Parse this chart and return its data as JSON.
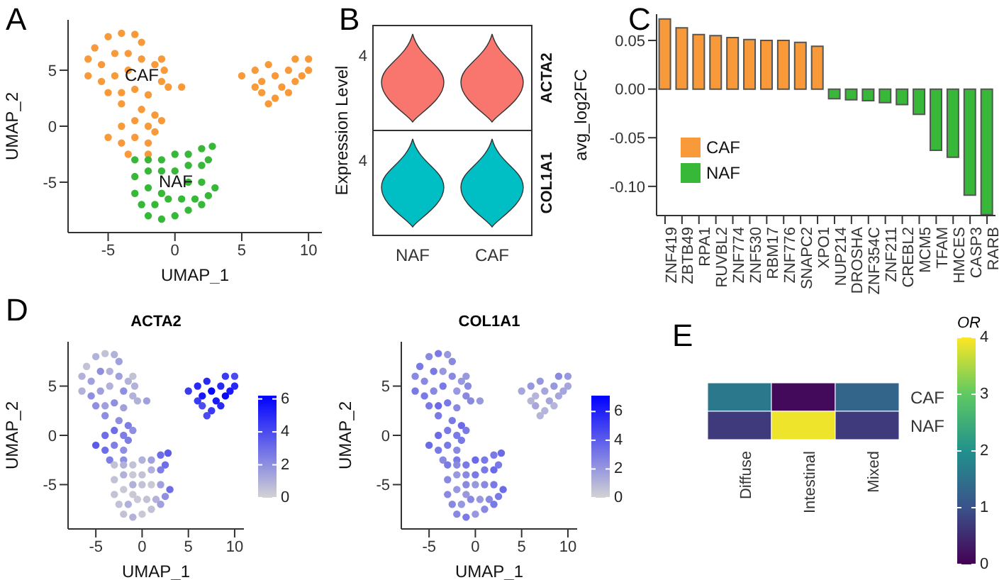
{
  "chart_data": [
    {
      "type": "scatter",
      "xlabel": "UMAP_1",
      "ylabel": "UMAP_2",
      "xlim": [
        -8,
        11
      ],
      "ylim": [
        -9.5,
        9.5
      ],
      "xticks": [
        -5,
        0,
        5,
        10
      ],
      "yticks": [
        -5,
        0,
        5
      ],
      "marker": "circle",
      "annotations": [
        "A",
        "CAF",
        "NAF"
      ],
      "series": [
        {
          "color": "#f99a3a",
          "x": [
            -6.5,
            -6,
            -5,
            -4,
            -3,
            -2.5,
            -6.5,
            -5.5,
            -4.5,
            -3.5,
            -2.5,
            -1.5,
            -1,
            -0.8,
            -5.5,
            -4.5,
            -3.5,
            -1,
            0.5,
            -0.5,
            -5,
            -4,
            -3,
            -2,
            -4,
            -2.5,
            -1.5,
            -3,
            -4,
            -2,
            -1,
            -5,
            -4,
            -3,
            -2,
            -1.5,
            -3.5,
            -2,
            5,
            6,
            6.5,
            6.5,
            7,
            7.5,
            7.5,
            8,
            8.5,
            9,
            9.5,
            10,
            10,
            8.5,
            9,
            6,
            7
          ],
          "values": [
            6,
            7,
            8,
            8.3,
            8.2,
            7.5,
            4.5,
            5.5,
            6.5,
            6.5,
            6,
            5.5,
            6,
            5,
            4,
            4.5,
            5,
            4,
            3.5,
            3.5,
            3,
            3,
            3.3,
            2.8,
            2,
            1.5,
            1,
            0.5,
            0,
            0,
            0.5,
            -1,
            -1.5,
            -1,
            -1.5,
            -0.5,
            -2.5,
            -2.5,
            4.5,
            5,
            4,
            3,
            5.5,
            4.5,
            2.5,
            3.5,
            5,
            6,
            4.5,
            6,
            5,
            3,
            4,
            3.5,
            2
          ]
        },
        {
          "color": "#38b838",
          "x": [
            -3,
            -2,
            -1,
            0,
            1,
            2,
            2.8,
            -3,
            -2,
            -1,
            0,
            1,
            2,
            2.5,
            -3,
            -2,
            1,
            2,
            3,
            -2.5,
            -1.5,
            -0.5,
            0.5,
            1.5,
            2.5,
            -2,
            -1,
            0,
            1,
            -1,
            2
          ],
          "values": [
            -3,
            -3,
            -3,
            -2.5,
            -2.5,
            -2,
            -1.8,
            -4.5,
            -4,
            -4,
            -4,
            -3.5,
            -3.5,
            -3,
            -6,
            -5.5,
            -5,
            -5,
            -5.5,
            -7,
            -7,
            -6.5,
            -6.5,
            -6.5,
            -6.2,
            -8,
            -8.3,
            -8,
            -7.5,
            -6,
            -7
          ]
        }
      ]
    },
    {
      "type": "other",
      "ylabel": "Expression Level",
      "annotations": [
        "B",
        "4",
        "4",
        "ACTA2",
        "COL1A1",
        "NAF",
        "CAF"
      ],
      "colors": [
        "#f8766d",
        "#00bfc4"
      ]
    },
    {
      "type": "bar",
      "categories": [
        "ZNF419",
        "ZBTB49",
        "RPA1",
        "RUVBL2",
        "ZNF774",
        "ZNF530",
        "RBM17",
        "ZNF776",
        "SNAPC2",
        "XPO1",
        "NUP214",
        "DROSHA",
        "ZNF354C",
        "ZNF211",
        "CREBL2",
        "MCM5",
        "TFAM",
        "HMCES",
        "CASP3",
        "RARB"
      ],
      "ylabel": "avg_log2FC",
      "ylim": [
        -0.13,
        0.077
      ],
      "yticks": [
        0.05,
        {
          "value": 0,
          "label": "0.00"
        },
        -0.05,
        {
          "value": -0.1,
          "label": "-0.10"
        }
      ],
      "stacked": true,
      "legend": "bottom left",
      "annotations": [
        "C"
      ],
      "series": [
        {
          "name": "CAF",
          "color": "#f99a3a",
          "values": [
            0.072,
            0.063,
            0.056,
            0.055,
            0.053,
            0.051,
            0.05,
            0.05,
            0.048,
            0.044,
            null,
            null,
            null,
            null,
            null,
            null,
            null,
            null,
            null,
            null
          ]
        },
        {
          "name": "NAF",
          "color": "#38b838",
          "values": [
            null,
            null,
            null,
            null,
            null,
            null,
            null,
            null,
            null,
            null,
            -0.01,
            -0.011,
            -0.012,
            -0.014,
            -0.016,
            -0.026,
            -0.063,
            -0.07,
            -0.109,
            -0.129
          ]
        }
      ]
    },
    {
      "type": "scatter",
      "title": "ACTA2",
      "xlabel": "UMAP_1",
      "ylabel": "UMAP_2",
      "xlim": [
        -8,
        11
      ],
      "ylim": [
        -9.5,
        9.5
      ],
      "xticks": [
        -5,
        0,
        5,
        10
      ],
      "yticks": [
        -5,
        0,
        5
      ],
      "marker": "circle",
      "clim": [
        0,
        6.2
      ],
      "cticks": [
        0,
        2,
        4,
        6
      ],
      "annotations": [
        "D"
      ],
      "series": [
        {
          "x": [
            -6.5,
            -6,
            -5,
            -4,
            -3,
            -2.5,
            -6.5,
            -5.5,
            -4.5,
            -3.5,
            -2.5,
            -1.5,
            -1,
            -0.8,
            -5.5,
            -4.5,
            -3.5,
            -2,
            -1,
            0.5,
            -0.5,
            -5,
            -4,
            -3,
            -2,
            -4,
            -2.5,
            -1.5,
            -3,
            -4,
            -2,
            -1,
            -5,
            -4,
            -3,
            -2,
            -1.5,
            -3.5,
            -2,
            5,
            6,
            6.5,
            6.5,
            7,
            7.5,
            7.5,
            8,
            8.5,
            9,
            9.5,
            10,
            10,
            8.5,
            9,
            6,
            7,
            -3,
            -2,
            -1,
            0,
            1,
            2,
            2.8,
            -3,
            -2,
            -1,
            0,
            1,
            2,
            2.5,
            -3,
            -2,
            -1,
            0,
            1,
            2,
            3,
            -2.5,
            -1.5,
            -0.5,
            0.5,
            1.5,
            2.5,
            -2,
            -1,
            0,
            1,
            -1,
            2
          ],
          "values": [
            6,
            7,
            8,
            8.3,
            8.2,
            7.5,
            4.5,
            5.5,
            6.5,
            6.5,
            6,
            5.5,
            6,
            5,
            4,
            4.5,
            5,
            4.5,
            4,
            3.5,
            3.5,
            3,
            3,
            3.3,
            2.8,
            2,
            1.5,
            1,
            0.5,
            0,
            0,
            0.5,
            -1,
            -1.5,
            -1,
            -1.5,
            -0.5,
            -2.5,
            -2.5,
            4.5,
            5,
            4,
            3,
            5.5,
            4.5,
            2.5,
            3.5,
            5,
            6,
            4.5,
            6,
            5,
            3,
            4,
            3.5,
            2,
            -3,
            -3,
            -3,
            -2.5,
            -2.5,
            -2,
            -1.8,
            -4.5,
            -4,
            -4,
            -4,
            -3.5,
            -3.5,
            -3,
            -6,
            -5.5,
            -5,
            -5,
            -5,
            -5,
            -5.5,
            -7,
            -7,
            -6.5,
            -6.5,
            -6.5,
            -6.2,
            -8,
            -8.3,
            -8,
            -7.5,
            -6,
            -7
          ],
          "cvalues": [
            1,
            0.5,
            1,
            0.5,
            1,
            1.5,
            1,
            1.5,
            2,
            1,
            1.5,
            1,
            0.5,
            1,
            2,
            1.5,
            1,
            2,
            1,
            1.5,
            1,
            2,
            1.5,
            2,
            1.5,
            2,
            2,
            2.5,
            3,
            3,
            2.5,
            2,
            3.5,
            3,
            2.5,
            2,
            2.5,
            2.5,
            2,
            4.5,
            5,
            5.5,
            4,
            5,
            6,
            4.5,
            5.5,
            5,
            4.5,
            5.5,
            4,
            5,
            5,
            6,
            4.5,
            4,
            0.5,
            1,
            0.5,
            1,
            1.5,
            3,
            3.5,
            0.5,
            1,
            0.3,
            0.5,
            1,
            2.5,
            3,
            0.5,
            0.3,
            1,
            0.5,
            0.3,
            1.5,
            3,
            0.5,
            1,
            0.3,
            0.5,
            1,
            2,
            0.5,
            1,
            0.3,
            0.5,
            0.3,
            1.5
          ]
        }
      ]
    },
    {
      "type": "scatter",
      "title": "COL1A1",
      "xlabel": "UMAP_1",
      "ylabel": "UMAP_2",
      "xlim": [
        -8,
        11
      ],
      "ylim": [
        -9.5,
        9.5
      ],
      "xticks": [
        -5,
        0,
        5,
        10
      ],
      "yticks": [
        -5,
        0,
        5
      ],
      "marker": "circle",
      "clim": [
        0,
        7.1
      ],
      "cticks": [
        0,
        2,
        4,
        6
      ],
      "series": [
        {
          "x": [
            -6.5,
            -6,
            -5,
            -4,
            -3,
            -2.5,
            -6.5,
            -5.5,
            -4.5,
            -3.5,
            -2.5,
            -1.5,
            -1,
            -0.8,
            -5.5,
            -4.5,
            -3.5,
            -2,
            -1,
            0.5,
            -0.5,
            -5,
            -4,
            -3,
            -2,
            -4,
            -2.5,
            -1.5,
            -3,
            -4,
            -2,
            -1,
            -5,
            -4,
            -3,
            -2,
            -1.5,
            -3.5,
            -2,
            5,
            6,
            6.5,
            6.5,
            7,
            7.5,
            7.5,
            8,
            8.5,
            9,
            9.5,
            10,
            10,
            8.5,
            9,
            6,
            7,
            -3,
            -2,
            -1,
            0,
            1,
            2,
            2.8,
            -3,
            -2,
            -1,
            0,
            1,
            2,
            2.5,
            -3,
            -2,
            -1,
            0,
            1,
            2,
            3,
            -2.5,
            -1.5,
            -0.5,
            0.5,
            1.5,
            2.5,
            -2,
            -1,
            0,
            1,
            -1,
            2
          ],
          "values": [
            6,
            7,
            8,
            8.3,
            8.2,
            7.5,
            4.5,
            5.5,
            6.5,
            6.5,
            6,
            5.5,
            6,
            5,
            4,
            4.5,
            5,
            4.5,
            4,
            3.5,
            3.5,
            3,
            3,
            3.3,
            2.8,
            2,
            1.5,
            1,
            0.5,
            0,
            0,
            0.5,
            -1,
            -1.5,
            -1,
            -1.5,
            -0.5,
            -2.5,
            -2.5,
            4.5,
            5,
            4,
            3,
            5.5,
            4.5,
            2.5,
            3.5,
            5,
            6,
            4.5,
            6,
            5,
            3,
            4,
            3.5,
            2,
            -3,
            -3,
            -3,
            -2.5,
            -2.5,
            -2,
            -1.8,
            -4.5,
            -4,
            -4,
            -4,
            -3.5,
            -3.5,
            -3,
            -6,
            -5.5,
            -5,
            -5,
            -5,
            -5,
            -5.5,
            -7,
            -7,
            -6.5,
            -6.5,
            -6.5,
            -6.2,
            -8,
            -8.3,
            -8,
            -7.5,
            -6,
            -7
          ],
          "cvalues": [
            2.5,
            3,
            2.5,
            3,
            2,
            2.5,
            3,
            2.5,
            3,
            2,
            2.5,
            2,
            2,
            2.5,
            3,
            2.5,
            3,
            2,
            2.5,
            2,
            2.5,
            3,
            3.5,
            3,
            2.5,
            3,
            3,
            3.5,
            3,
            3.5,
            3,
            3,
            3.5,
            3,
            3,
            2.5,
            3,
            2.5,
            3,
            1.5,
            2,
            1,
            1.5,
            2,
            1.5,
            1,
            1.5,
            2,
            2.5,
            1.5,
            2,
            1.5,
            1,
            1.5,
            1,
            1,
            3,
            2.5,
            3,
            3.5,
            3,
            3,
            3.5,
            2.5,
            2,
            2.5,
            3,
            3,
            3.5,
            3,
            2.5,
            2,
            2.5,
            2,
            2.5,
            3,
            3.5,
            2.5,
            2,
            2.5,
            2,
            2.5,
            3,
            2.5,
            3,
            2,
            2.5,
            2,
            3
          ]
        }
      ]
    },
    {
      "type": "heatmap",
      "categories": [
        "Diffuse",
        "Intestinal",
        "Mixed"
      ],
      "y_categories": [
        "CAF",
        "NAF"
      ],
      "cells": [
        [
          1.6,
          0.1,
          1.3
        ],
        [
          0.7,
          3.9,
          0.7
        ]
      ],
      "clabel": "OR",
      "clim": [
        0,
        4
      ],
      "cticks": [
        0,
        1,
        2,
        3,
        4
      ],
      "annotations": [
        "E"
      ]
    }
  ]
}
